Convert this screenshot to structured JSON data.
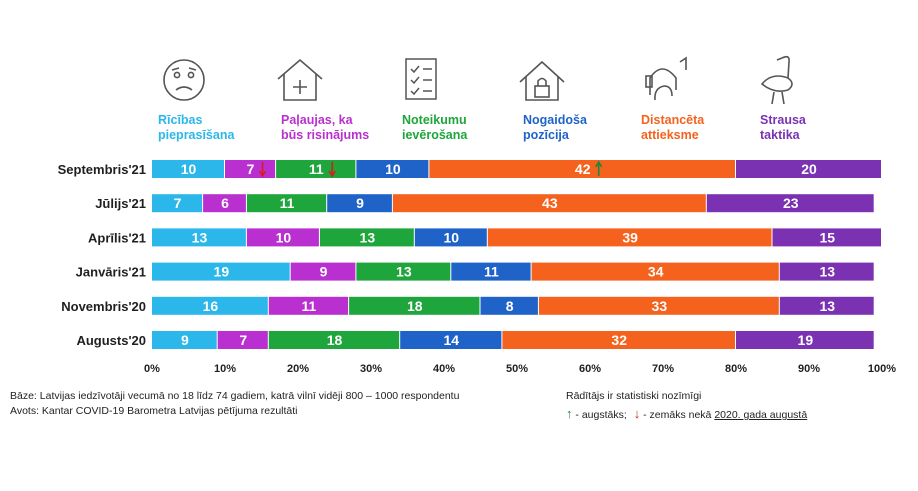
{
  "chart_data": {
    "type": "bar",
    "orientation": "horizontal",
    "stacked": true,
    "percent": true,
    "categories": [
      "Septembris'21",
      "Jūlijs'21",
      "Aprīlis'21",
      "Janvāris'21",
      "Novembris'20",
      "Augusts'20"
    ],
    "series": [
      {
        "name": "Rīcības pieprasīšana",
        "color": "#2bb7ea",
        "icon": "sad-face-icon",
        "values": [
          10,
          7,
          13,
          19,
          16,
          9
        ]
      },
      {
        "name": "Paļaujas, ka būs risinājums",
        "color": "#b92fd0",
        "icon": "house-medical-icon",
        "values": [
          7,
          6,
          10,
          9,
          11,
          7
        ]
      },
      {
        "name": "Noteikumu ievērošana",
        "color": "#1ea53b",
        "icon": "checklist-icon",
        "values": [
          11,
          11,
          13,
          13,
          18,
          18
        ]
      },
      {
        "name": "Nogaidoša pozīcija",
        "color": "#1f63c9",
        "icon": "house-lock-icon",
        "values": [
          10,
          9,
          10,
          11,
          8,
          14
        ]
      },
      {
        "name": "Distancēta attieksme",
        "color": "#f5621d",
        "icon": "headphones-person-icon",
        "values": [
          42,
          43,
          39,
          34,
          33,
          32
        ]
      },
      {
        "name": "Strausa taktika",
        "color": "#7b32b2",
        "icon": "ostrich-icon",
        "values": [
          20,
          23,
          15,
          13,
          13,
          19
        ]
      }
    ],
    "value_labels": [
      [
        "10",
        "7",
        "11",
        "10",
        "42",
        "20"
      ],
      [
        "7",
        "6",
        "11",
        "9",
        "43",
        "23"
      ],
      [
        "13",
        "10",
        "13",
        "10",
        "39",
        "15"
      ],
      [
        "19",
        "9",
        "13",
        "11",
        "34",
        "13"
      ],
      [
        "16",
        "11",
        "18",
        "8",
        "33",
        "13"
      ],
      [
        "9",
        "7",
        "18",
        "14",
        "32",
        "19"
      ]
    ],
    "significance_markers": [
      {
        "category": "Septembris'21",
        "series": "Paļaujas, ka būs risinājums",
        "direction": "down"
      },
      {
        "category": "Septembris'21",
        "series": "Noteikumu ievērošana",
        "direction": "down"
      },
      {
        "category": "Septembris'21",
        "series": "Distancēta attieksme",
        "direction": "up"
      }
    ],
    "xlim": [
      0,
      100
    ],
    "x_ticks": [
      "0%",
      "10%",
      "20%",
      "30%",
      "40%",
      "50%",
      "60%",
      "70%",
      "80%",
      "90%",
      "100%"
    ],
    "grid": false,
    "legend_position": "top"
  },
  "legend_labels": [
    [
      "Rīcības",
      "pieprasīšana"
    ],
    [
      "Paļaujas, ka",
      "būs risinājums"
    ],
    [
      "Noteikumu",
      "ievērošana"
    ],
    [
      "Nogaidoša",
      "pozīcija"
    ],
    [
      "Distancēta",
      "attieksme"
    ],
    [
      "Strausa",
      "taktika"
    ]
  ],
  "footnote": {
    "base": "Bāze: Latvijas iedzīvotāji vecumā no 18 līdz 74 gadiem, katrā vilnī vidēji 800 – 1000 respondentu",
    "source": "Avots: Kantar COVID-19 Barometra Latvijas pētījuma rezultāti"
  },
  "significance_note": {
    "title": "Rādītājs ir statistiski nozīmīgi",
    "higher": "- augstāks;",
    "lower": "- zemāks nekā",
    "reference": "2020. gada augustā"
  }
}
